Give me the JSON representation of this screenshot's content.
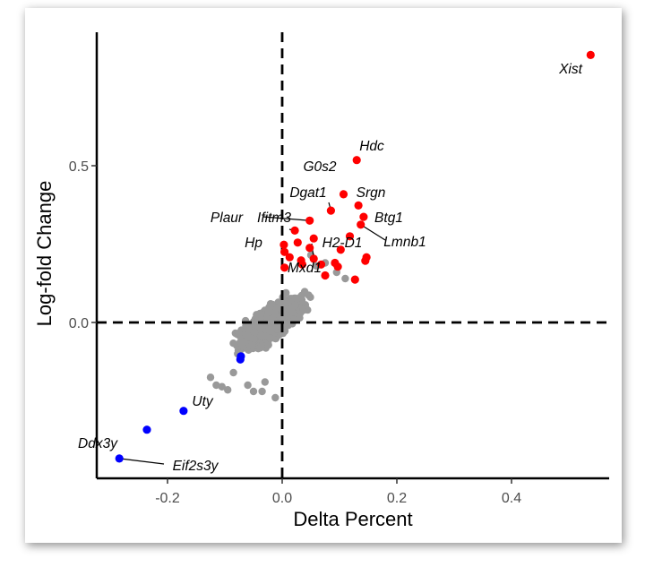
{
  "chart_data": {
    "type": "scatter",
    "title": "",
    "xlabel": "Delta Percent",
    "ylabel": "Log-fold Change",
    "xlim": [
      -0.33,
      0.585
    ],
    "ylim": [
      -0.5,
      0.92
    ],
    "x_ticks": [
      -0.2,
      0.0,
      0.2,
      0.4
    ],
    "x_tick_labels": [
      "-0.2",
      "0.0",
      "0.2",
      "0.4"
    ],
    "y_ticks": [
      0.0,
      0.5
    ],
    "y_tick_labels": [
      "0.0",
      "0.5"
    ],
    "reference_lines": {
      "x": 0.0,
      "y": 0.0,
      "style": "dashed"
    },
    "grid": false,
    "colors": {
      "up": "#ff0000",
      "down": "#0000ff",
      "background": "#999999"
    },
    "series": [
      {
        "name": "",
        "color": "#ff0000",
        "points": [
          {
            "x": 0.538,
            "y": 0.853,
            "label": "Xist"
          },
          {
            "x": 0.13,
            "y": 0.518,
            "label": "Hdc"
          },
          {
            "x": 0.107,
            "y": 0.409,
            "label": "G0s2"
          },
          {
            "x": 0.085,
            "y": 0.357,
            "label": "Dgat1"
          },
          {
            "x": 0.133,
            "y": 0.373,
            "label": "Srgn"
          },
          {
            "x": 0.142,
            "y": 0.337,
            "label": "Btg1"
          },
          {
            "x": 0.137,
            "y": 0.312,
            "label": "Lmnb1"
          },
          {
            "x": 0.022,
            "y": 0.293,
            "label": "Ifitm3"
          },
          {
            "x": 0.048,
            "y": 0.325,
            "label": "Plaur"
          },
          {
            "x": 0.003,
            "y": 0.248,
            "label": "Hp"
          },
          {
            "x": 0.055,
            "y": 0.203,
            "label": "H2-D1"
          },
          {
            "x": 0.004,
            "y": 0.175,
            "label": "Mxd1"
          },
          {
            "x": 0.055,
            "y": 0.268
          },
          {
            "x": 0.027,
            "y": 0.255
          },
          {
            "x": 0.048,
            "y": 0.238
          },
          {
            "x": 0.004,
            "y": 0.225
          },
          {
            "x": 0.013,
            "y": 0.208
          },
          {
            "x": 0.033,
            "y": 0.198
          },
          {
            "x": 0.068,
            "y": 0.185
          },
          {
            "x": 0.102,
            "y": 0.232
          },
          {
            "x": 0.118,
            "y": 0.275
          },
          {
            "x": 0.092,
            "y": 0.19
          },
          {
            "x": 0.097,
            "y": 0.178
          },
          {
            "x": 0.147,
            "y": 0.208
          },
          {
            "x": 0.145,
            "y": 0.197
          },
          {
            "x": 0.127,
            "y": 0.137
          },
          {
            "x": 0.075,
            "y": 0.15
          },
          {
            "x": 0.035,
            "y": 0.185
          }
        ]
      },
      {
        "name": "",
        "color": "#0000ff",
        "points": [
          {
            "x": -0.284,
            "y": -0.434,
            "label": "Eif2s3y"
          },
          {
            "x": -0.236,
            "y": -0.342,
            "label": "Ddx3y"
          },
          {
            "x": -0.172,
            "y": -0.282,
            "label": "Uty"
          },
          {
            "x": -0.073,
            "y": -0.118
          },
          {
            "x": -0.072,
            "y": -0.108
          }
        ]
      }
    ],
    "background_cloud": {
      "color": "#999999",
      "description_x_range": [
        -0.125,
        0.12
      ],
      "approx_slope": 1.1
    }
  }
}
